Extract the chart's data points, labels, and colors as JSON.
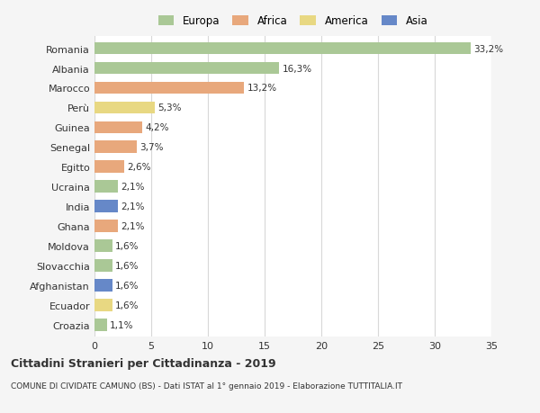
{
  "countries": [
    "Romania",
    "Albania",
    "Marocco",
    "Perù",
    "Guinea",
    "Senegal",
    "Egitto",
    "Ucraina",
    "India",
    "Ghana",
    "Moldova",
    "Slovacchia",
    "Afghanistan",
    "Ecuador",
    "Croazia"
  ],
  "values": [
    33.2,
    16.3,
    13.2,
    5.3,
    4.2,
    3.7,
    2.6,
    2.1,
    2.1,
    2.1,
    1.6,
    1.6,
    1.6,
    1.6,
    1.1
  ],
  "labels": [
    "33,2%",
    "16,3%",
    "13,2%",
    "5,3%",
    "4,2%",
    "3,7%",
    "2,6%",
    "2,1%",
    "2,1%",
    "2,1%",
    "1,6%",
    "1,6%",
    "1,6%",
    "1,6%",
    "1,1%"
  ],
  "continents": [
    "Europa",
    "Europa",
    "Africa",
    "America",
    "Africa",
    "Africa",
    "Africa",
    "Europa",
    "Asia",
    "Africa",
    "Europa",
    "Europa",
    "Asia",
    "America",
    "Europa"
  ],
  "colors": {
    "Europa": "#aac896",
    "Africa": "#e8a87c",
    "America": "#e8d882",
    "Asia": "#6688c8"
  },
  "xlim": [
    0,
    35
  ],
  "xticks": [
    0,
    5,
    10,
    15,
    20,
    25,
    30,
    35
  ],
  "title": "Cittadini Stranieri per Cittadinanza - 2019",
  "subtitle": "COMUNE DI CIVIDATE CAMUNO (BS) - Dati ISTAT al 1° gennaio 2019 - Elaborazione TUTTITALIA.IT",
  "background_color": "#f5f5f5",
  "bar_background": "#ffffff",
  "grid_color": "#d8d8d8",
  "text_color": "#333333",
  "legend_order": [
    "Europa",
    "Africa",
    "America",
    "Asia"
  ]
}
